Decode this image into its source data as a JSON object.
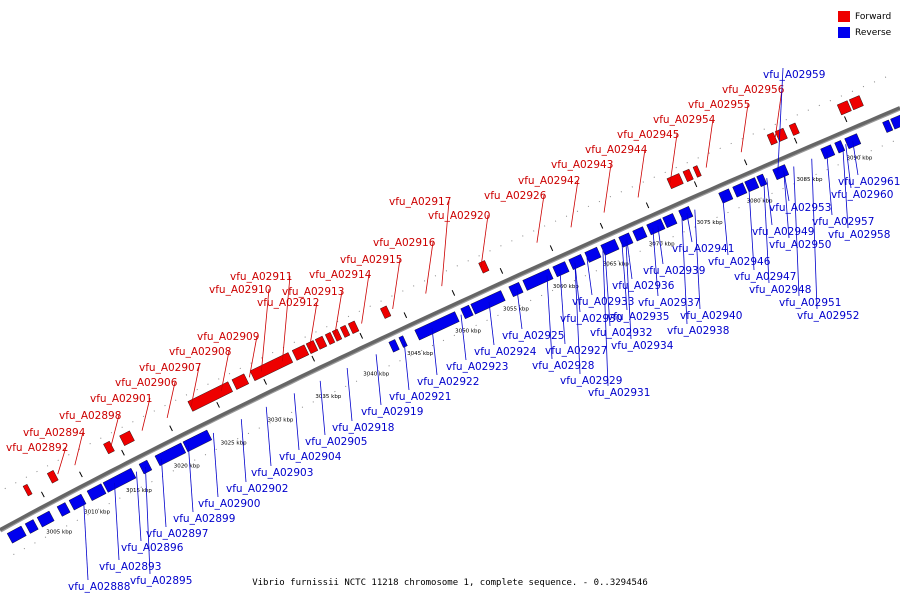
{
  "legend": {
    "forward_label": "Forward",
    "reverse_label": "Reverse",
    "forward_color": "#ee0000",
    "reverse_color": "#0000ee"
  },
  "caption": "Vibrio furnissii NCTC 11218 chromosome 1, complete sequence. - 0..3294546",
  "axis": {
    "unit": "kbp",
    "ticks": [
      3005,
      3010,
      3015,
      3020,
      3025,
      3030,
      3035,
      3040,
      3045,
      3050,
      3055,
      3060,
      3065,
      3070,
      3075,
      3080,
      3085,
      3090
    ]
  },
  "forward_genes": [
    "vfu_A02892",
    "vfu_A02894",
    "vfu_A02898",
    "vfu_A02901",
    "vfu_A02906",
    "vfu_A02907",
    "vfu_A02908",
    "vfu_A02909",
    "vfu_A02910",
    "vfu_A02911",
    "vfu_A02912",
    "vfu_A02913",
    "vfu_A02914",
    "vfu_A02915",
    "vfu_A02916",
    "vfu_A02917",
    "vfu_A02920",
    "vfu_A02926",
    "vfu_A02942",
    "vfu_A02943",
    "vfu_A02944",
    "vfu_A02945",
    "vfu_A02954",
    "vfu_A02955",
    "vfu_A02956"
  ],
  "reverse_genes": [
    "vfu_A02888",
    "vfu_A02893",
    "vfu_A02895",
    "vfu_A02896",
    "vfu_A02897",
    "vfu_A02899",
    "vfu_A02900",
    "vfu_A02902",
    "vfu_A02903",
    "vfu_A02904",
    "vfu_A02905",
    "vfu_A02918",
    "vfu_A02919",
    "vfu_A02921",
    "vfu_A02922",
    "vfu_A02923",
    "vfu_A02924",
    "vfu_A02925",
    "vfu_A02927",
    "vfu_A02928",
    "vfu_A02929",
    "vfu_A02930",
    "vfu_A02931",
    "vfu_A02932",
    "vfu_A02933",
    "vfu_A02934",
    "vfu_A02935",
    "vfu_A02936",
    "vfu_A02937",
    "vfu_A02938",
    "vfu_A02939",
    "vfu_A02940",
    "vfu_A02941",
    "vfu_A02946",
    "vfu_A02947",
    "vfu_A02948",
    "vfu_A02949",
    "vfu_A02950",
    "vfu_A02951",
    "vfu_A02952",
    "vfu_A02953",
    "vfu_A02957",
    "vfu_A02958",
    "vfu_A02959",
    "vfu_A02960",
    "vfu_A02961"
  ]
}
